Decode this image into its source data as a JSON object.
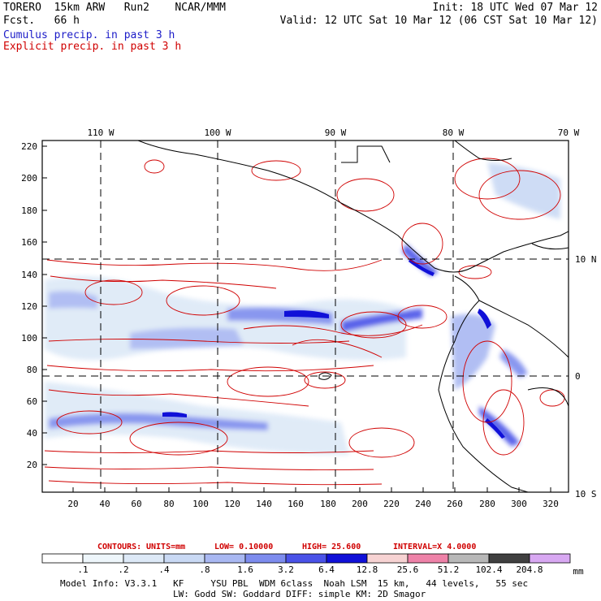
{
  "header": {
    "model": "TORERO  15km ARW   Run2    NCAR/MMM",
    "fcst": "Fcst.   66 h",
    "init": "Init: 18 UTC Wed 07 Mar 12",
    "valid": "Valid: 12 UTC Sat 10 Mar 12 (06 CST Sat 10 Mar 12)",
    "cumulus": "Cumulus precip. in past 3 h",
    "explicit": "Explicit precip. in past 3 h"
  },
  "map": {
    "top_lon_labels": [
      "110 W",
      "100 W",
      "90 W",
      "80 W",
      "70 W"
    ],
    "right_lat_labels": [
      "10 N",
      "0",
      "10 S"
    ],
    "left_y_ticks": [
      "220",
      "200",
      "180",
      "160",
      "140",
      "120",
      "100",
      "80",
      "60",
      "40",
      "20"
    ],
    "bottom_x_ticks": [
      "20",
      "40",
      "60",
      "80",
      "100",
      "120",
      "140",
      "160",
      "180",
      "200",
      "220",
      "240",
      "260",
      "280",
      "300",
      "320"
    ]
  },
  "contours": {
    "label": "CONTOURS:",
    "units": "UNITS=mm",
    "low": "LOW= 0.10000",
    "high": "HIGH=  25.600",
    "interval": "INTERVAL=X  4.0000"
  },
  "colorbar": {
    "labels": [
      ".1",
      ".2",
      ".4",
      ".8",
      "1.6",
      "3.2",
      "6.4",
      "12.8",
      "25.6",
      "51.2",
      "102.4",
      "204.8"
    ],
    "unit": "mm",
    "colors": [
      "#ffffff",
      "#eef6fb",
      "#dde9f7",
      "#c9d9f4",
      "#a9b8f2",
      "#7d8cee",
      "#4a52e8",
      "#1010d8",
      "#f7d3d3",
      "#ee82a8",
      "#b8b8b8",
      "#404040",
      "#d8a8f2"
    ]
  },
  "footer": {
    "line1": "Model Info: V3.3.1   KF     YSU PBL  WDM 6class  Noah LSM  15 km,   44 levels,   55 sec",
    "line2": "LW: Godd SW: Goddard DIFF: simple KM: 2D Smagor"
  }
}
